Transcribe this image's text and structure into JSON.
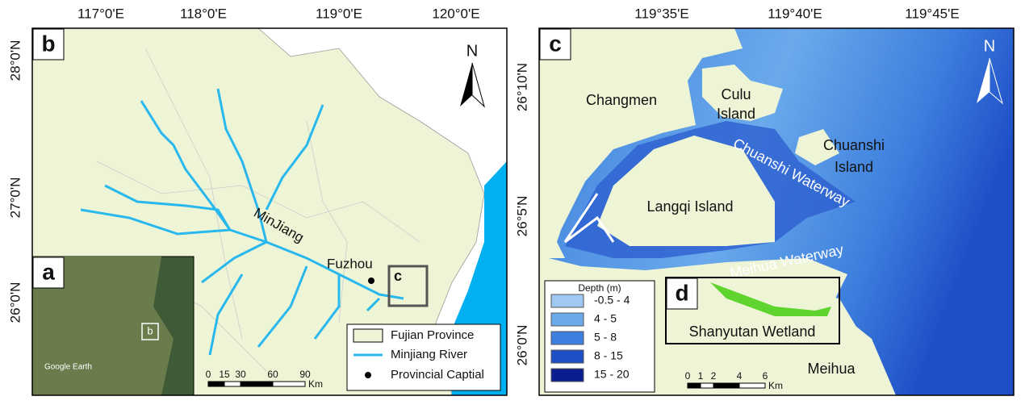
{
  "panel_b": {
    "label": "b",
    "lon_labels": [
      "117°0'E",
      "118°0'E",
      "119°0'E",
      "120°0'E"
    ],
    "lat_labels": [
      "28°0'N",
      "27°0'N",
      "26°0'N"
    ],
    "north": "N",
    "river_label": "MinJiang",
    "city": "Fuzhou",
    "box_label": "c",
    "inset": {
      "label": "a",
      "box_label": "b",
      "credit": "Google Earth"
    },
    "legend": [
      "Fujian Province",
      "Minjiang River",
      "Provincial Captial"
    ],
    "scale": {
      "ticks": [
        "0",
        "15",
        "30",
        "60",
        "90"
      ],
      "unit": "Km"
    }
  },
  "panel_c": {
    "label": "c",
    "lon_labels": [
      "119°35'E",
      "119°40'E",
      "119°45'E"
    ],
    "lat_labels": [
      "26°10'N",
      "26°5'N",
      "26°0'N"
    ],
    "north": "N",
    "places": [
      "Changmen",
      "Culu",
      "Island",
      "Chuanshi",
      "Island",
      "Langqi Island",
      "Meihua"
    ],
    "waterways": [
      "Chuanshi Waterway",
      "Meihua Waterway"
    ],
    "box": {
      "label": "d",
      "name": "Shanyutan Wetland"
    },
    "legend": {
      "title": "Depth (m)",
      "items": [
        "-0.5 - 4",
        "4 - 5",
        "5 - 8",
        "8 - 15",
        "15 - 20"
      ]
    },
    "scale": {
      "ticks": [
        "0",
        "1",
        "2",
        "4",
        "6"
      ],
      "unit": "Km"
    }
  }
}
